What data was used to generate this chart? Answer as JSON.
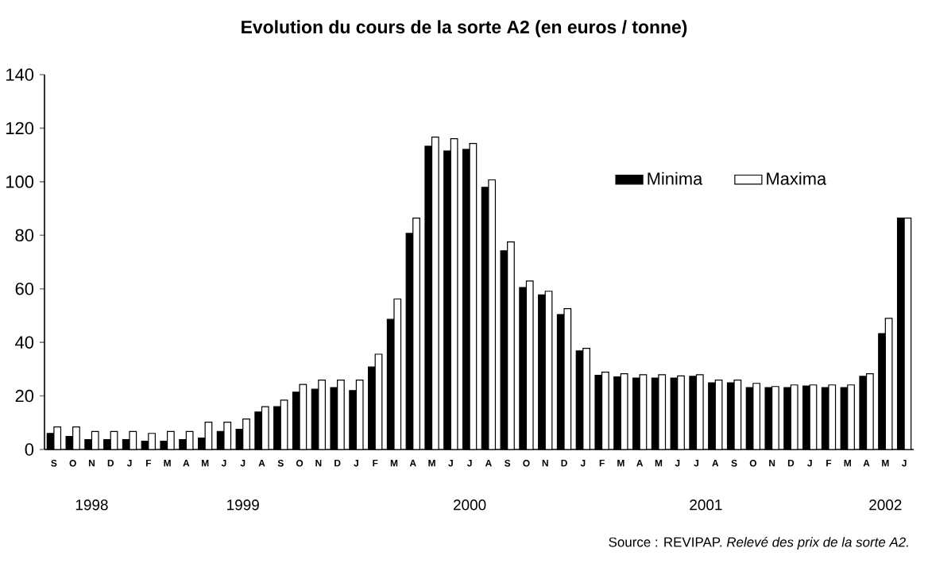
{
  "chart_data": {
    "type": "bar",
    "title": "Evolution du cours de la sorte A2 (en euros / tonne)",
    "categories": [
      "S",
      "O",
      "N",
      "D",
      "J",
      "F",
      "M",
      "A",
      "M",
      "J",
      "J",
      "A",
      "S",
      "O",
      "N",
      "D",
      "J",
      "F",
      "M",
      "A",
      "M",
      "J",
      "J",
      "A",
      "S",
      "O",
      "N",
      "D",
      "J",
      "F",
      "M",
      "A",
      "M",
      "J",
      "J",
      "A",
      "S",
      "O",
      "N",
      "D",
      "J",
      "F",
      "M",
      "A",
      "M",
      "J"
    ],
    "ylim": [
      0,
      140
    ],
    "yticks": [
      0,
      20,
      40,
      60,
      80,
      100,
      120,
      140
    ],
    "legend": "right",
    "series": [
      {
        "name": "Minima",
        "color": "#000000",
        "values": [
          6,
          4.9,
          3.7,
          3.7,
          3.7,
          3.1,
          3.1,
          3.7,
          4.3,
          6.7,
          7.5,
          14,
          16,
          21.4,
          22.5,
          23.1,
          22,
          30.8,
          48.6,
          80.7,
          113.3,
          111.5,
          112.1,
          97.9,
          74.2,
          60.5,
          57.7,
          50.4,
          36.8,
          27.7,
          27.1,
          26.7,
          26.7,
          26.7,
          27.3,
          24.9,
          24.9,
          23.1,
          23.1,
          23.1,
          23.7,
          23.1,
          23.1,
          27.3,
          43.3,
          86.4
        ]
      },
      {
        "name": "Maxima",
        "color": "#ffffff",
        "values": [
          8.4,
          8.4,
          6.7,
          6.7,
          6.7,
          6,
          6.7,
          6.7,
          10.2,
          10.2,
          11.4,
          16,
          18.4,
          24.3,
          25.9,
          25.9,
          25.9,
          35.6,
          56.2,
          86.4,
          116.7,
          116.1,
          114.3,
          100.7,
          77.5,
          62.9,
          59.1,
          52.6,
          37.8,
          28.9,
          28.3,
          27.9,
          27.9,
          27.5,
          27.9,
          25.9,
          25.9,
          24.7,
          23.5,
          24.1,
          24.1,
          24.1,
          24.1,
          28.3,
          49,
          86.4
        ]
      }
    ],
    "annotations": [
      "1998",
      "1999",
      "2000",
      "2001",
      "2002",
      "Source : REVIPAP. *Relevé des prix de la sorte A2.*"
    ]
  }
}
